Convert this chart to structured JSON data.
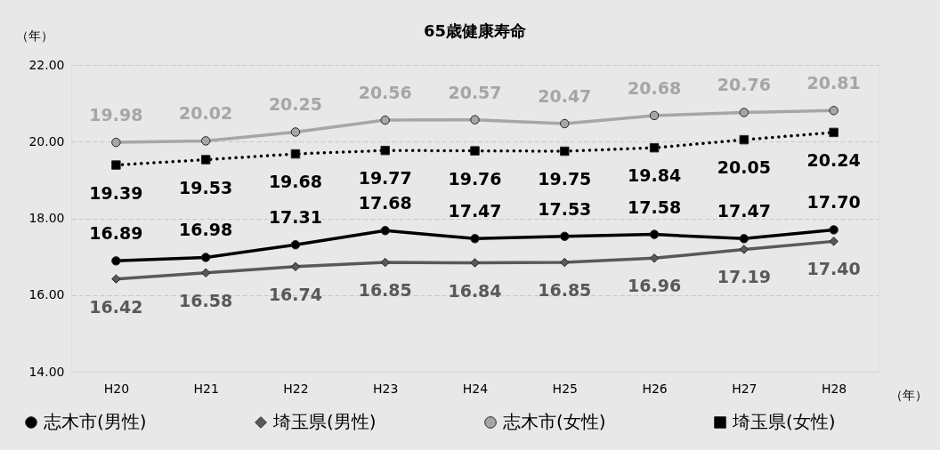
{
  "chart_data": {
    "type": "line",
    "title": "65歳健康寿命",
    "ylabel": "（年）",
    "xlabel": "（年）",
    "categories": [
      "H20",
      "H21",
      "H22",
      "H23",
      "H24",
      "H25",
      "H26",
      "H27",
      "H28"
    ],
    "ylim": [
      14,
      22
    ],
    "yticks": [
      {
        "value": 14,
        "label": "14.00"
      },
      {
        "value": 16,
        "label": "16.00"
      },
      {
        "value": 18,
        "label": "18.00"
      },
      {
        "value": 20,
        "label": "20.00"
      },
      {
        "value": 22,
        "label": "22.00"
      }
    ],
    "grid": "y",
    "legend": "bottom",
    "series": [
      {
        "name": "志木市(男性)",
        "color": "#000000",
        "marker": "circle",
        "line_style": "solid",
        "values": [
          16.89,
          16.98,
          17.31,
          17.68,
          17.47,
          17.53,
          17.58,
          17.47,
          17.7
        ],
        "value_labels": [
          "16.89",
          "16.98",
          "17.31",
          "17.68",
          "17.47",
          "17.53",
          "17.58",
          "17.47",
          "17.70"
        ]
      },
      {
        "name": "埼玉県(男性)",
        "color": "#595959",
        "marker": "diamond",
        "line_style": "solid",
        "values": [
          16.42,
          16.58,
          16.74,
          16.85,
          16.84,
          16.85,
          16.96,
          17.19,
          17.4
        ],
        "value_labels": [
          "16.42",
          "16.58",
          "16.74",
          "16.85",
          "16.84",
          "16.85",
          "16.96",
          "17.19",
          "17.40"
        ]
      },
      {
        "name": "志木市(女性)",
        "color": "#a6a6a6",
        "marker": "circle",
        "line_style": "solid",
        "values": [
          19.98,
          20.02,
          20.25,
          20.56,
          20.57,
          20.47,
          20.68,
          20.76,
          20.81
        ],
        "value_labels": [
          "19.98",
          "20.02",
          "20.25",
          "20.56",
          "20.57",
          "20.47",
          "20.68",
          "20.76",
          "20.81"
        ]
      },
      {
        "name": "埼玉県(女性)",
        "color": "#000000",
        "marker": "square",
        "line_style": "dotted",
        "values": [
          19.39,
          19.53,
          19.68,
          19.77,
          19.76,
          19.75,
          19.84,
          20.05,
          20.24
        ],
        "value_labels": [
          "19.39",
          "19.53",
          "19.68",
          "19.77",
          "19.76",
          "19.75",
          "19.84",
          "20.05",
          "20.24"
        ]
      }
    ]
  }
}
